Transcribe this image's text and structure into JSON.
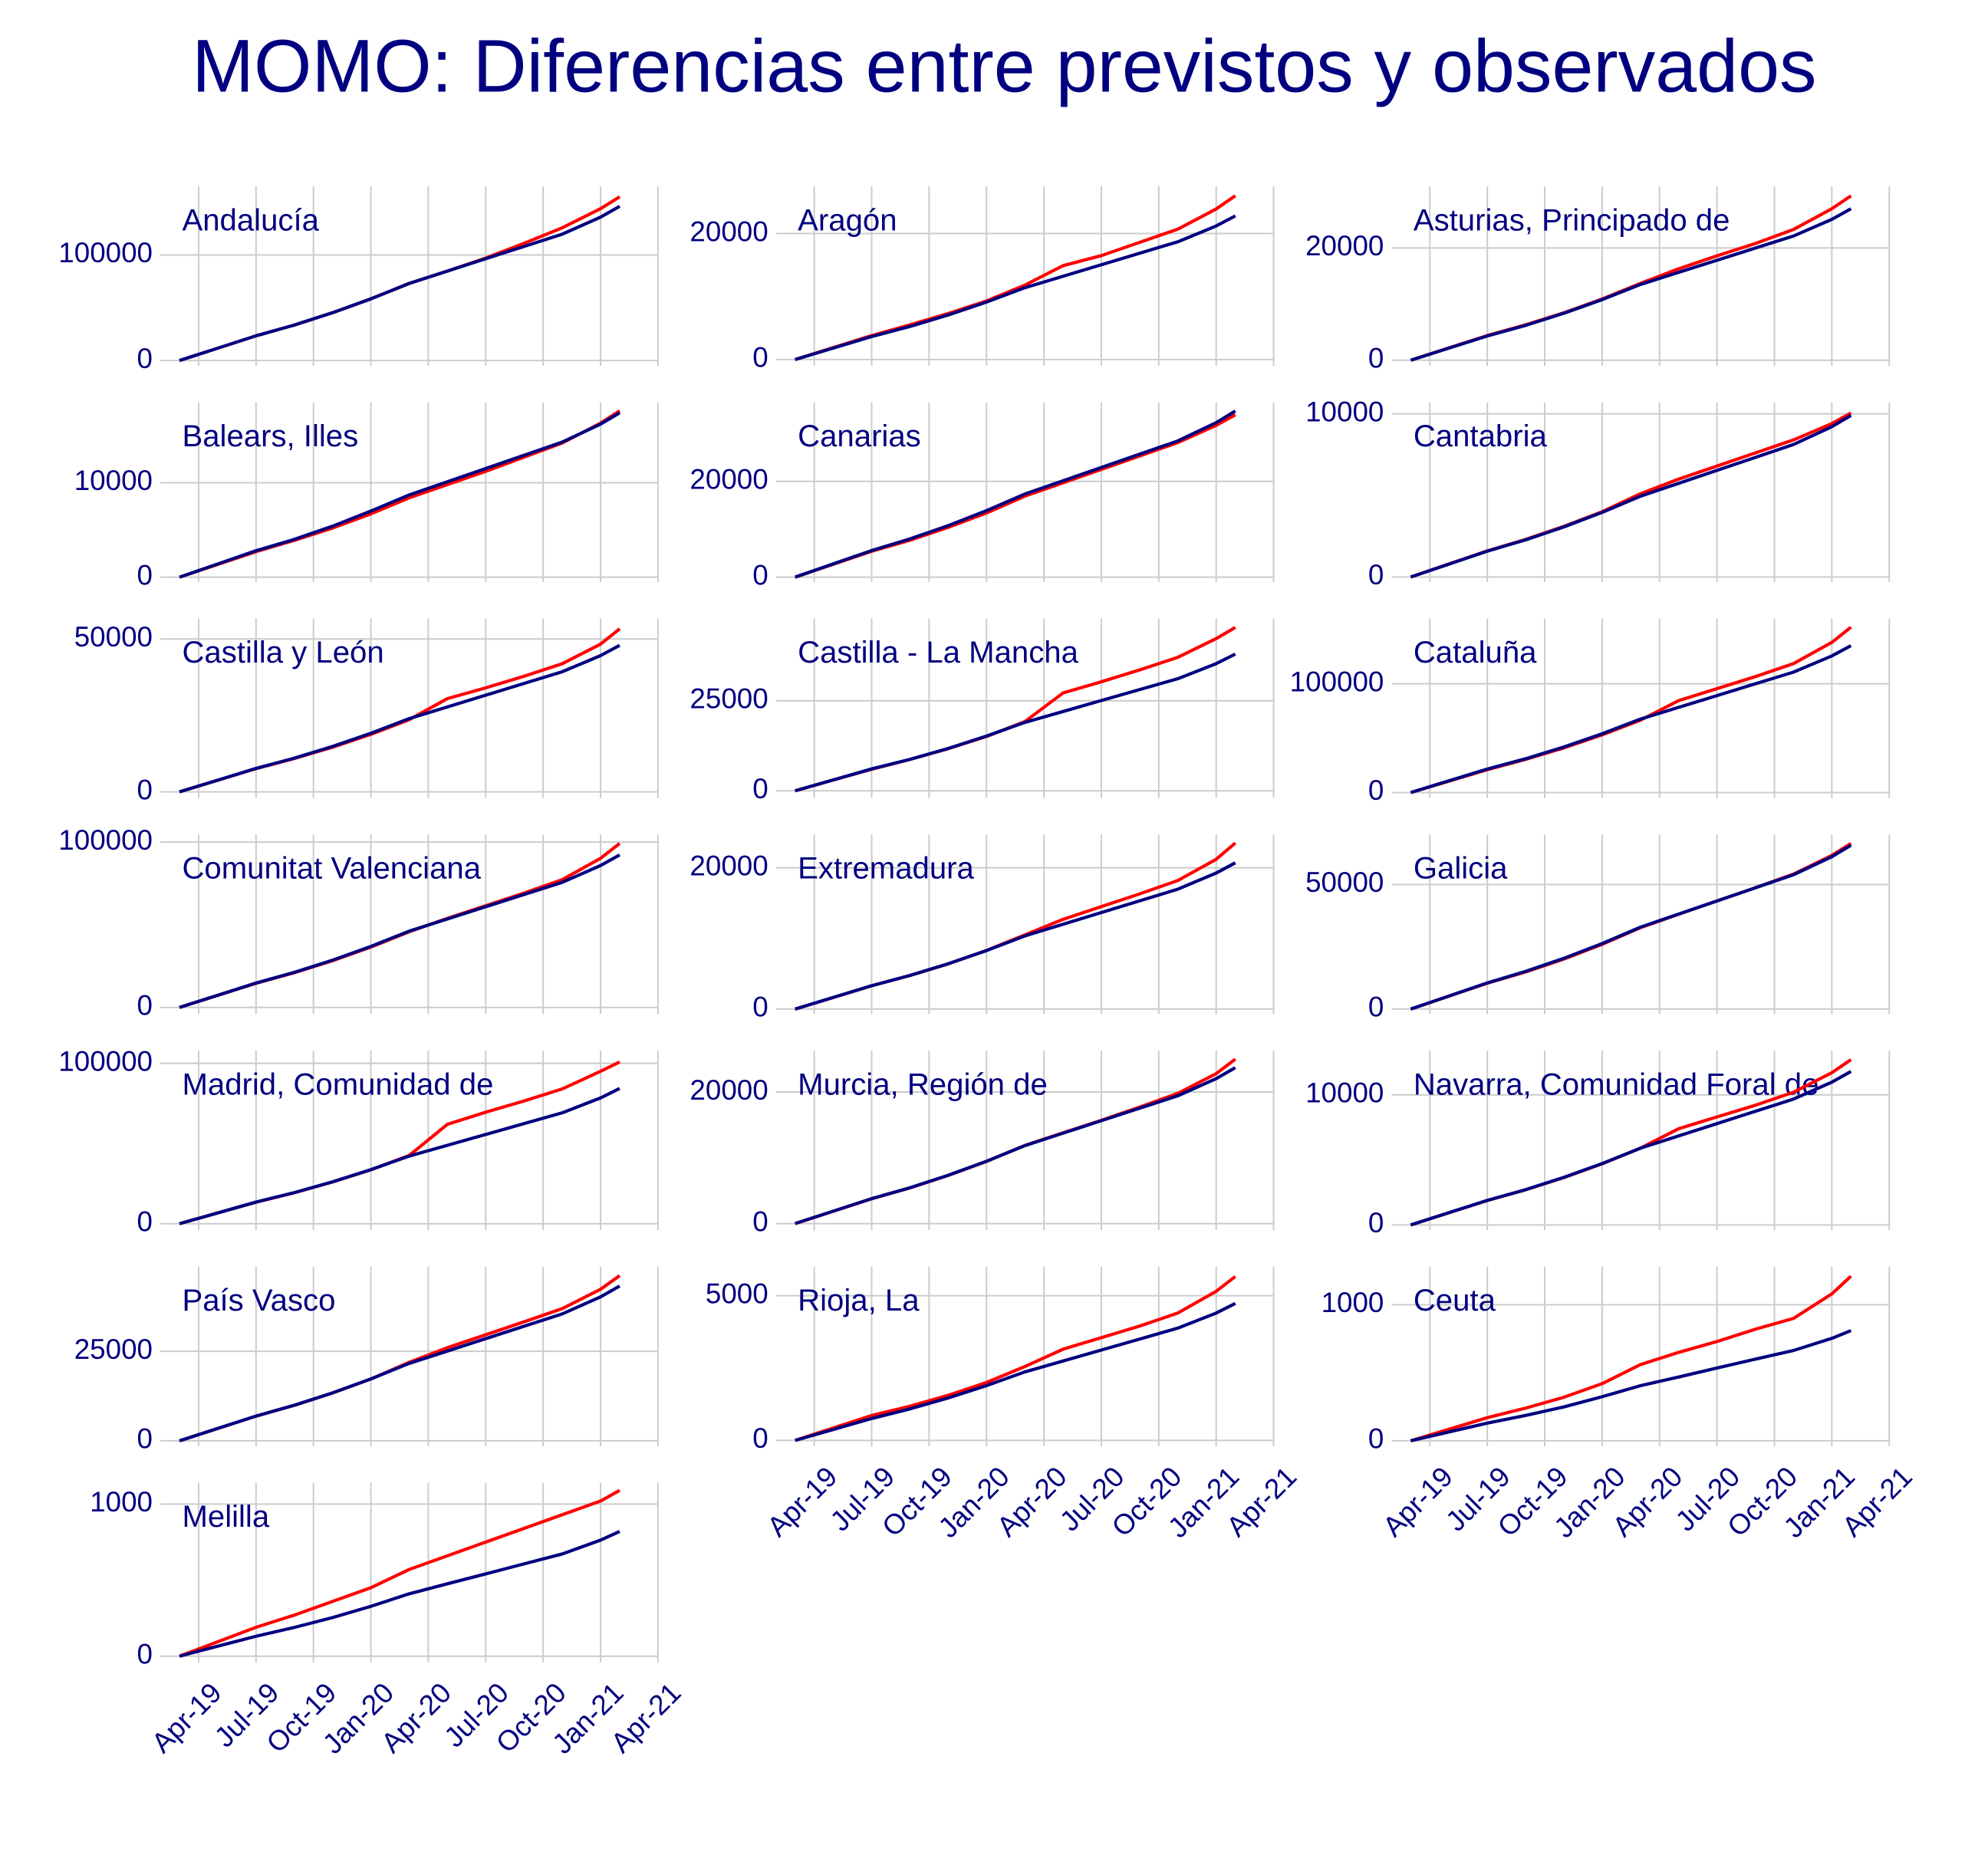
{
  "chart_data": {
    "type": "line",
    "title": "MOMO: Diferencias entre previstos y observados",
    "x": [
      "2019-03",
      "2019-05",
      "2019-07",
      "2019-09",
      "2019-11",
      "2020-01",
      "2020-03",
      "2020-05",
      "2020-07",
      "2020-09",
      "2020-11",
      "2021-01",
      "2021-02"
    ],
    "xlim": [
      "2019-02",
      "2021-04"
    ],
    "xticks": [
      {
        "value": "2019-04",
        "label": "Apr-19"
      },
      {
        "value": "2019-07",
        "label": "Jul-19"
      },
      {
        "value": "2019-10",
        "label": "Oct-19"
      },
      {
        "value": "2020-01",
        "label": "Jan-20"
      },
      {
        "value": "2020-04",
        "label": "Apr-20"
      },
      {
        "value": "2020-07",
        "label": "Jul-20"
      },
      {
        "value": "2020-10",
        "label": "Oct-20"
      },
      {
        "value": "2021-01",
        "label": "Jan-21"
      },
      {
        "value": "2021-04",
        "label": "Apr-21"
      }
    ],
    "grid": true,
    "panels": [
      {
        "title": "Andalucía",
        "ylim": [
          -5000,
          165000
        ],
        "yticks": [
          0,
          100000
        ],
        "series": [
          {
            "color": "#ff0000",
            "values": [
              0,
              11700,
              23400,
              33600,
              45300,
              58400,
              73000,
              84700,
              97000,
              111000,
              125700,
              143800,
              155000
            ]
          },
          {
            "color": "#000080",
            "values": [
              0,
              11700,
              23400,
              33600,
              45300,
              58400,
              73000,
              84700,
              96400,
              108000,
              119700,
              135800,
              146000
            ]
          }
        ]
      },
      {
        "title": "Aragón",
        "ylim": [
          -1000,
          27500
        ],
        "yticks": [
          0,
          20000
        ],
        "series": [
          {
            "color": "#ff0000",
            "values": [
              0,
              1900,
              3800,
              5500,
              7300,
              9300,
              11800,
              14900,
              16500,
              18600,
              20700,
              23900,
              26000
            ]
          },
          {
            "color": "#000080",
            "values": [
              0,
              1824,
              3648,
              5244,
              7068,
              9120,
              11400,
              13224,
              15048,
              16872,
              18696,
              21204,
              22800
            ]
          }
        ]
      },
      {
        "title": "Asturias, Principado de",
        "ylim": [
          -1000,
          31000
        ],
        "yticks": [
          0,
          20000
        ],
        "series": [
          {
            "color": "#ff0000",
            "values": [
              0,
              2200,
              4400,
              6300,
              8450,
              10900,
              13700,
              16300,
              18600,
              20800,
              23300,
              27000,
              29300
            ]
          },
          {
            "color": "#000080",
            "values": [
              0,
              2160,
              4320,
              6210,
              8370,
              10800,
              13500,
              15660,
              17820,
              19980,
              22140,
              25110,
              27000
            ]
          }
        ]
      },
      {
        "title": "Balears, Illes",
        "ylim": [
          -500,
          18500
        ],
        "yticks": [
          0,
          10000
        ],
        "series": [
          {
            "color": "#ff0000",
            "values": [
              0,
              1350,
              2700,
              3900,
              5200,
              6700,
              8400,
              9800,
              11200,
              12700,
              14200,
              16300,
              17600
            ]
          },
          {
            "color": "#000080",
            "values": [
              0,
              1400,
              2800,
              4000,
              5400,
              7000,
              8700,
              10100,
              11500,
              12900,
              14300,
              16200,
              17400
            ]
          }
        ]
      },
      {
        "title": "Canarias",
        "ylim": [
          -1000,
          36500
        ],
        "yticks": [
          0,
          20000
        ],
        "series": [
          {
            "color": "#ff0000",
            "values": [
              0,
              2700,
              5400,
              7700,
              10400,
              13400,
              16900,
              19700,
              22500,
              25300,
              28100,
              31700,
              33900
            ]
          },
          {
            "color": "#000080",
            "values": [
              0,
              2776,
              5552,
              7981,
              10757,
              13880,
              17350,
              20126,
              22902,
              25678,
              28454,
              32271,
              34700
            ]
          }
        ]
      },
      {
        "title": "Cantabria",
        "ylim": [
          -300,
          10700
        ],
        "yticks": [
          0,
          10000
        ],
        "series": [
          {
            "color": "#ff0000",
            "values": [
              0,
              800,
              1600,
              2300,
              3100,
              4000,
              5100,
              6000,
              6800,
              7600,
              8400,
              9400,
              10050
            ]
          },
          {
            "color": "#000080",
            "values": [
              0,
              792,
              1584,
              2277,
              3069,
              3960,
              4950,
              5742,
              6534,
              7326,
              8118,
              9207,
              9900
            ]
          }
        ]
      },
      {
        "title": "Castilla y León",
        "ylim": [
          -2000,
          56700
        ],
        "yticks": [
          0,
          50000
        ],
        "series": [
          {
            "color": "#ff0000",
            "values": [
              0,
              3800,
              7600,
              10900,
              14600,
              18800,
              23600,
              30500,
              34000,
              37800,
              41900,
              48300,
              53300
            ]
          },
          {
            "color": "#000080",
            "values": [
              0,
              3832,
              7664,
              11017,
              14849,
              19160,
              23950,
              27782,
              31614,
              35446,
              39278,
              44547,
              47900
            ]
          }
        ]
      },
      {
        "title": "Castilla - La Mancha",
        "ylim": [
          -2000,
          47900
        ],
        "yticks": [
          0,
          25000
        ],
        "series": [
          {
            "color": "#ff0000",
            "values": [
              0,
              3000,
              6000,
              8700,
              11700,
              15100,
              19200,
              27200,
              30300,
              33600,
              37100,
              42300,
              45400
            ]
          },
          {
            "color": "#000080",
            "values": [
              0,
              3040,
              6080,
              8740,
              11780,
              15200,
              19000,
              22040,
              25080,
              28120,
              31160,
              35340,
              38000
            ]
          }
        ]
      },
      {
        "title": "Cataluña",
        "ylim": [
          -5000,
          160000
        ],
        "yticks": [
          0,
          100000
        ],
        "series": [
          {
            "color": "#ff0000",
            "values": [
              0,
              10500,
              21000,
              30500,
              41000,
              53000,
              66500,
              84500,
              95500,
              106500,
              118500,
              138000,
              152000
            ]
          },
          {
            "color": "#000080",
            "values": [
              0,
              10800,
              21600,
              31050,
              41850,
              54000,
              67500,
              78300,
              89100,
              99900,
              110700,
              125550,
              135000
            ]
          }
        ]
      },
      {
        "title": "Comunitat Valenciana",
        "ylim": [
          -4000,
          104600
        ],
        "yticks": [
          0,
          100000
        ],
        "series": [
          {
            "color": "#ff0000",
            "values": [
              0,
              7300,
              14600,
              21000,
              28300,
              36500,
              45800,
              53900,
              61500,
              69200,
              77300,
              90200,
              99200
            ]
          },
          {
            "color": "#000080",
            "values": [
              0,
              7384,
              14768,
              21229,
              28613,
              36920,
              46150,
              53534,
              60918,
              68302,
              75686,
              85839,
              92300
            ]
          }
        ]
      },
      {
        "title": "Extremadura",
        "ylim": [
          -700,
          24700
        ],
        "yticks": [
          0,
          20000
        ],
        "series": [
          {
            "color": "#ff0000",
            "values": [
              0,
              1650,
              3300,
              4750,
              6400,
              8300,
              10500,
              12700,
              14500,
              16300,
              18200,
              21200,
              23500
            ]
          },
          {
            "color": "#000080",
            "values": [
              0,
              1656,
              3312,
              4761,
              6417,
              8280,
              10350,
              12006,
              13662,
              15318,
              16974,
              19251,
              20700
            ]
          }
        ]
      },
      {
        "title": "Galicia",
        "ylim": [
          -2000,
          70100
        ],
        "yticks": [
          0,
          50000
        ],
        "series": [
          {
            "color": "#ff0000",
            "values": [
              0,
              5200,
              10400,
              14900,
              20100,
              26000,
              32700,
              38100,
              43400,
              48700,
              54200,
              61700,
              66500
            ]
          },
          {
            "color": "#000080",
            "values": [
              0,
              5264,
              10528,
              15134,
              20398,
              26320,
              32900,
              38164,
              43428,
              48692,
              53956,
              61194,
              65800
            ]
          }
        ]
      },
      {
        "title": "Madrid, Comunidad de",
        "ylim": [
          -4000,
          107900
        ],
        "yticks": [
          0,
          100000
        ],
        "series": [
          {
            "color": "#ff0000",
            "values": [
              0,
              6700,
              13400,
              19300,
              26000,
              33600,
              42500,
              62000,
              69500,
              76500,
              84000,
              95000,
              100800
            ]
          },
          {
            "color": "#000080",
            "values": [
              0,
              6744,
              13488,
              19389,
              26133,
              33720,
              42150,
              48894,
              55638,
              62382,
              69126,
              78399,
              84300
            ]
          }
        ]
      },
      {
        "title": "Murcia, Región de",
        "ylim": [
          -1000,
          26300
        ],
        "yticks": [
          0,
          20000
        ],
        "series": [
          {
            "color": "#ff0000",
            "values": [
              0,
              1880,
              3770,
              5420,
              7320,
              9450,
              11870,
              13800,
              15700,
              17700,
              19800,
              22800,
              25000
            ]
          },
          {
            "color": "#000080",
            "values": [
              0,
              1896,
              3792,
              5451,
              7347,
              9480,
              11850,
              13746,
              15642,
              17538,
              19434,
              22041,
              23700
            ]
          }
        ]
      },
      {
        "title": "Navarra, Comunidad Foral de",
        "ylim": [
          -400,
          13400
        ],
        "yticks": [
          0,
          10000
        ],
        "series": [
          {
            "color": "#ff0000",
            "values": [
              0,
              940,
              1880,
              2700,
              3640,
              4700,
              5900,
              7400,
              8300,
              9200,
              10200,
              11700,
              12700
            ]
          },
          {
            "color": "#000080",
            "values": [
              0,
              944,
              1888,
              2714,
              3658,
              4720,
              5900,
              6844,
              7788,
              8732,
              9676,
              10974,
              11800
            ]
          }
        ]
      },
      {
        "title": "País Vasco",
        "ylim": [
          -1500,
          48600
        ],
        "yticks": [
          0,
          25000
        ],
        "series": [
          {
            "color": "#ff0000",
            "values": [
              0,
              3450,
              6900,
              9900,
              13350,
              17250,
              21900,
              26000,
              29600,
              33200,
              36900,
              42300,
              46100
            ]
          },
          {
            "color": "#000080",
            "values": [
              0,
              3456,
              6912,
              9936,
              13392,
              17280,
              21600,
              25056,
              28512,
              31968,
              35424,
              40176,
              43200
            ]
          }
        ]
      },
      {
        "title": "Rioja, La",
        "ylim": [
          -200,
          6000
        ],
        "yticks": [
          0,
          5000
        ],
        "series": [
          {
            "color": "#ff0000",
            "values": [
              0,
              430,
              860,
              1180,
              1560,
              2000,
              2550,
              3150,
              3550,
              3950,
              4400,
              5150,
              5660
            ]
          },
          {
            "color": "#000080",
            "values": [
              0,
              378,
              757,
              1088,
              1466,
              1892,
              2365,
              2743,
              3122,
              3500,
              3879,
              4399,
              4730
            ]
          }
        ]
      },
      {
        "title": "Ceuta",
        "ylim": [
          -40,
          1280
        ],
        "yticks": [
          0,
          1000
        ],
        "series": [
          {
            "color": "#ff0000",
            "values": [
              0,
              85,
              170,
              240,
              320,
              420,
              560,
              650,
              730,
              820,
              900,
              1080,
              1210
            ]
          },
          {
            "color": "#000080",
            "values": [
              0,
              65,
              130,
              186,
              249,
              324,
              405,
              469,
              535,
              600,
              664,
              753,
              810
            ]
          }
        ]
      },
      {
        "title": "Melilla",
        "ylim": [
          -40,
          1140
        ],
        "yticks": [
          0,
          1000
        ],
        "series": [
          {
            "color": "#ff0000",
            "values": [
              0,
              95,
              190,
              270,
              360,
              450,
              570,
              660,
              750,
              840,
              930,
              1020,
              1090
            ]
          },
          {
            "color": "#000080",
            "values": [
              0,
              66,
              131,
              189,
              254,
              328,
              410,
              476,
              541,
              607,
              672,
              763,
              820
            ]
          }
        ]
      }
    ]
  }
}
